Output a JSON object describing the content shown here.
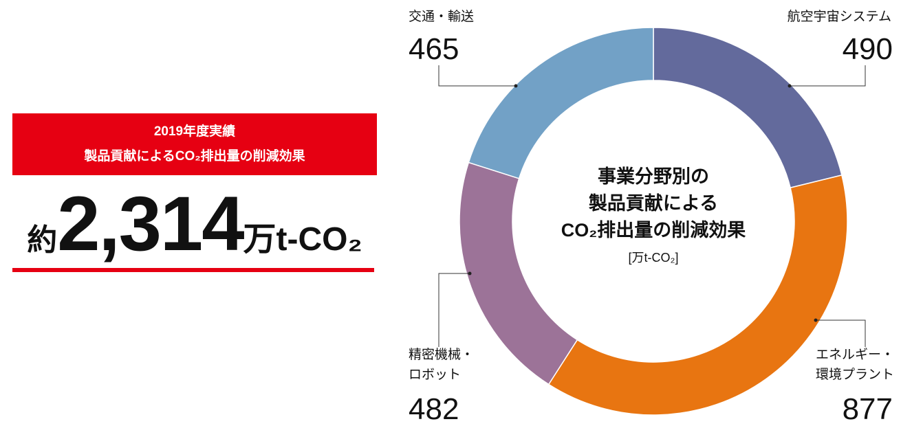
{
  "summary": {
    "title": "2019年度実績",
    "subtitle": "製品貢献によるCO₂排出量の削減効果",
    "total": {
      "prefix": "約",
      "value": 2314,
      "label": "2,314",
      "unit": "万t-CO₂"
    }
  },
  "chart_data": {
    "type": "donut",
    "title": "事業分野別の\n製品貢献による\nCO₂排出量の削減効果",
    "unit": "[万t-CO₂]",
    "categories": [
      "航空宇宙システム",
      "エネルギー・\n環境プラント",
      "精密機械・\nロボット",
      "交通・輸送"
    ],
    "values": [
      490,
      877,
      482,
      465
    ],
    "colors": [
      "#636a9c",
      "#e87511",
      "#9c7398",
      "#72a1c6"
    ]
  }
}
